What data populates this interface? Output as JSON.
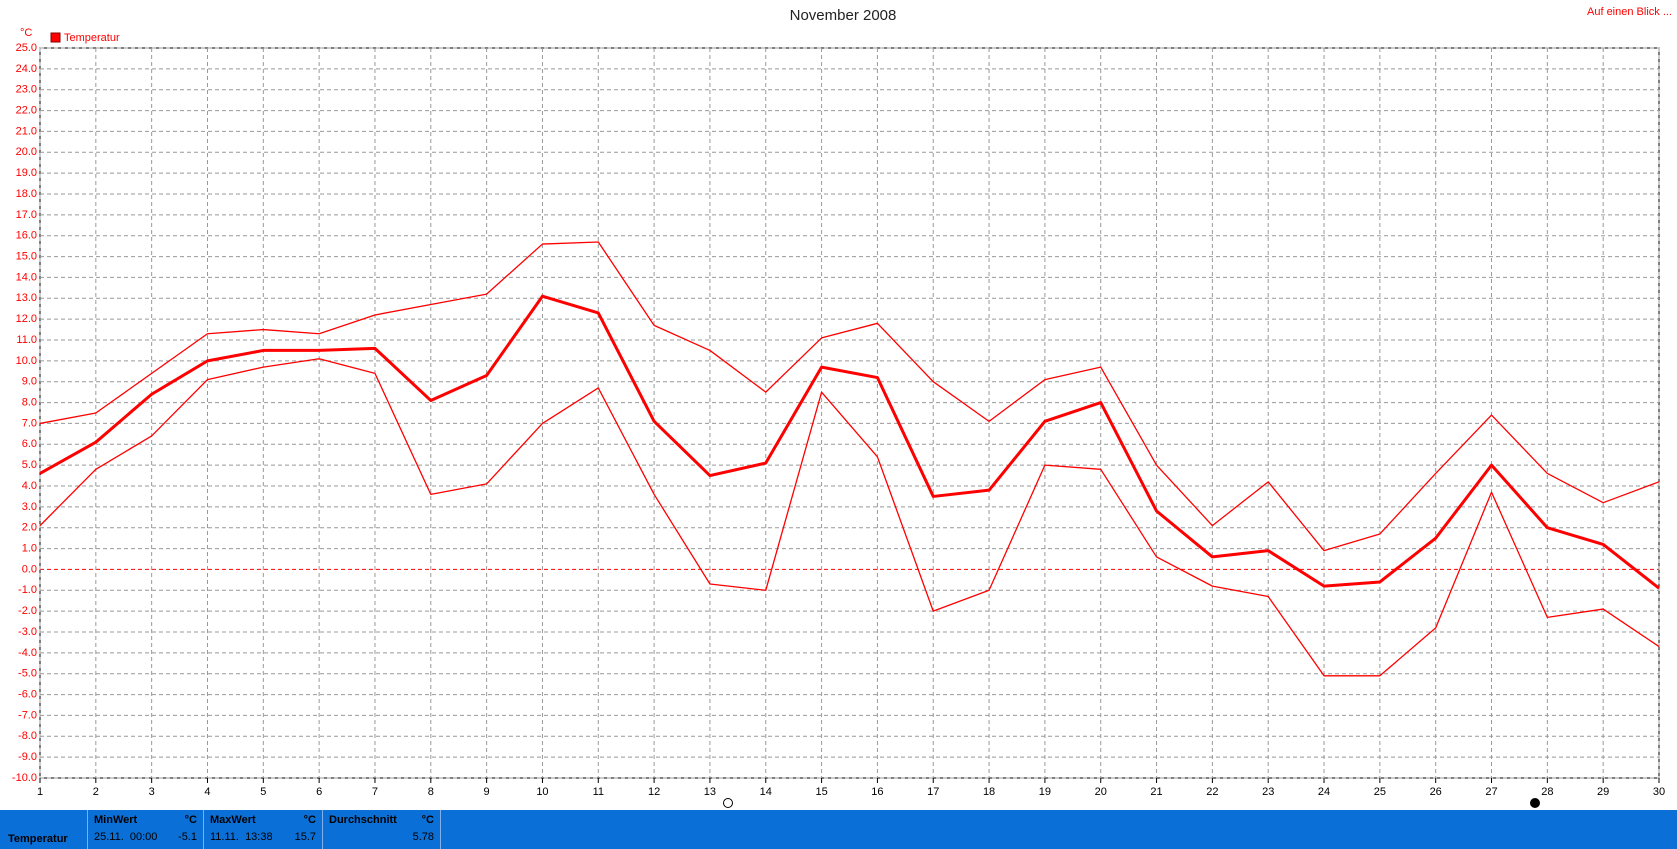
{
  "chart_data": {
    "type": "line",
    "title": "November 2008",
    "y_label": "°C",
    "legend": "Temperatur",
    "corner_link": "Auf einen Blick ...",
    "x": [
      1,
      2,
      3,
      4,
      5,
      6,
      7,
      8,
      9,
      10,
      11,
      12,
      13,
      14,
      15,
      16,
      17,
      18,
      19,
      20,
      21,
      22,
      23,
      24,
      25,
      26,
      27,
      28,
      29,
      30
    ],
    "xlim": [
      1,
      30
    ],
    "xticks": [
      1,
      2,
      3,
      4,
      5,
      6,
      7,
      8,
      9,
      10,
      11,
      12,
      13,
      14,
      15,
      16,
      17,
      18,
      19,
      20,
      21,
      22,
      23,
      24,
      25,
      26,
      27,
      28,
      29,
      30
    ],
    "ylim": [
      -10,
      25
    ],
    "yticks": [
      {
        "value": -10,
        "label": "-10.0"
      },
      {
        "value": -9,
        "label": "-9.0"
      },
      {
        "value": -8,
        "label": "-8.0"
      },
      {
        "value": -7,
        "label": "-7.0"
      },
      {
        "value": -6,
        "label": "-6.0"
      },
      {
        "value": -5,
        "label": "-5.0"
      },
      {
        "value": -4,
        "label": "-4.0"
      },
      {
        "value": -3,
        "label": "-3.0"
      },
      {
        "value": -2,
        "label": "-2.0"
      },
      {
        "value": -1,
        "label": "-1.0"
      },
      {
        "value": 0,
        "label": "0.0"
      },
      {
        "value": 1,
        "label": "1.0"
      },
      {
        "value": 2,
        "label": "2.0"
      },
      {
        "value": 3,
        "label": "3.0"
      },
      {
        "value": 4,
        "label": "4.0"
      },
      {
        "value": 5,
        "label": "5.0"
      },
      {
        "value": 6,
        "label": "6.0"
      },
      {
        "value": 7,
        "label": "7.0"
      },
      {
        "value": 8,
        "label": "8.0"
      },
      {
        "value": 9,
        "label": "9.0"
      },
      {
        "value": 10,
        "label": "10.0"
      },
      {
        "value": 11,
        "label": "11.0"
      },
      {
        "value": 12,
        "label": "12.0"
      },
      {
        "value": 13,
        "label": "13.0"
      },
      {
        "value": 14,
        "label": "14.0"
      },
      {
        "value": 15,
        "label": "15.0"
      },
      {
        "value": 16,
        "label": "16.0"
      },
      {
        "value": 17,
        "label": "17.0"
      },
      {
        "value": 18,
        "label": "18.0"
      },
      {
        "value": 19,
        "label": "19.0"
      },
      {
        "value": 20,
        "label": "20.0"
      },
      {
        "value": 21,
        "label": "21.0"
      },
      {
        "value": 22,
        "label": "22.0"
      },
      {
        "value": 23,
        "label": "23.0"
      },
      {
        "value": 24,
        "label": "24.0"
      },
      {
        "value": 25,
        "label": "25.0"
      }
    ],
    "grid": true,
    "color": "#ff0000",
    "series": [
      {
        "color": "#ff0000",
        "width": 1.3,
        "values": [
          7.0,
          7.5,
          9.4,
          11.3,
          11.5,
          11.3,
          12.2,
          12.7,
          13.2,
          15.6,
          15.7,
          11.7,
          10.5,
          8.5,
          11.1,
          11.8,
          9.0,
          7.1,
          9.1,
          9.7,
          5.0,
          2.1,
          4.2,
          0.9,
          1.7,
          4.6,
          7.4,
          4.6,
          3.2,
          4.2
        ]
      },
      {
        "color": "#ff0000",
        "width": 3,
        "values": [
          4.6,
          6.1,
          8.4,
          10.0,
          10.5,
          10.5,
          10.6,
          8.1,
          9.3,
          13.1,
          12.3,
          7.1,
          4.5,
          5.1,
          9.7,
          9.2,
          3.5,
          3.8,
          7.1,
          8.0,
          2.8,
          0.6,
          0.9,
          -0.8,
          -0.6,
          1.5,
          5.0,
          2.0,
          1.2,
          -0.9
        ]
      },
      {
        "color": "#ff0000",
        "width": 1.3,
        "values": [
          2.1,
          4.8,
          6.4,
          9.1,
          9.7,
          10.1,
          9.4,
          3.6,
          4.1,
          7.0,
          8.7,
          3.6,
          -0.7,
          -1.0,
          8.5,
          5.4,
          -2.0,
          -1.0,
          5.0,
          4.8,
          0.6,
          -0.8,
          -1.3,
          -5.1,
          -5.1,
          -2.8,
          3.7,
          -2.3,
          -1.9,
          -3.7
        ]
      }
    ]
  },
  "summary": {
    "name": "Temperatur",
    "min": {
      "title": "MinWert",
      "unit": "°C",
      "when": "25.11.  00:00",
      "value": -5.1
    },
    "max": {
      "title": "MaxWert",
      "unit": "°C",
      "when": "11.11.  13:38",
      "value": 15.7
    },
    "avg": {
      "title": "Durchschnitt",
      "unit": "°C",
      "value": 5.78
    }
  }
}
